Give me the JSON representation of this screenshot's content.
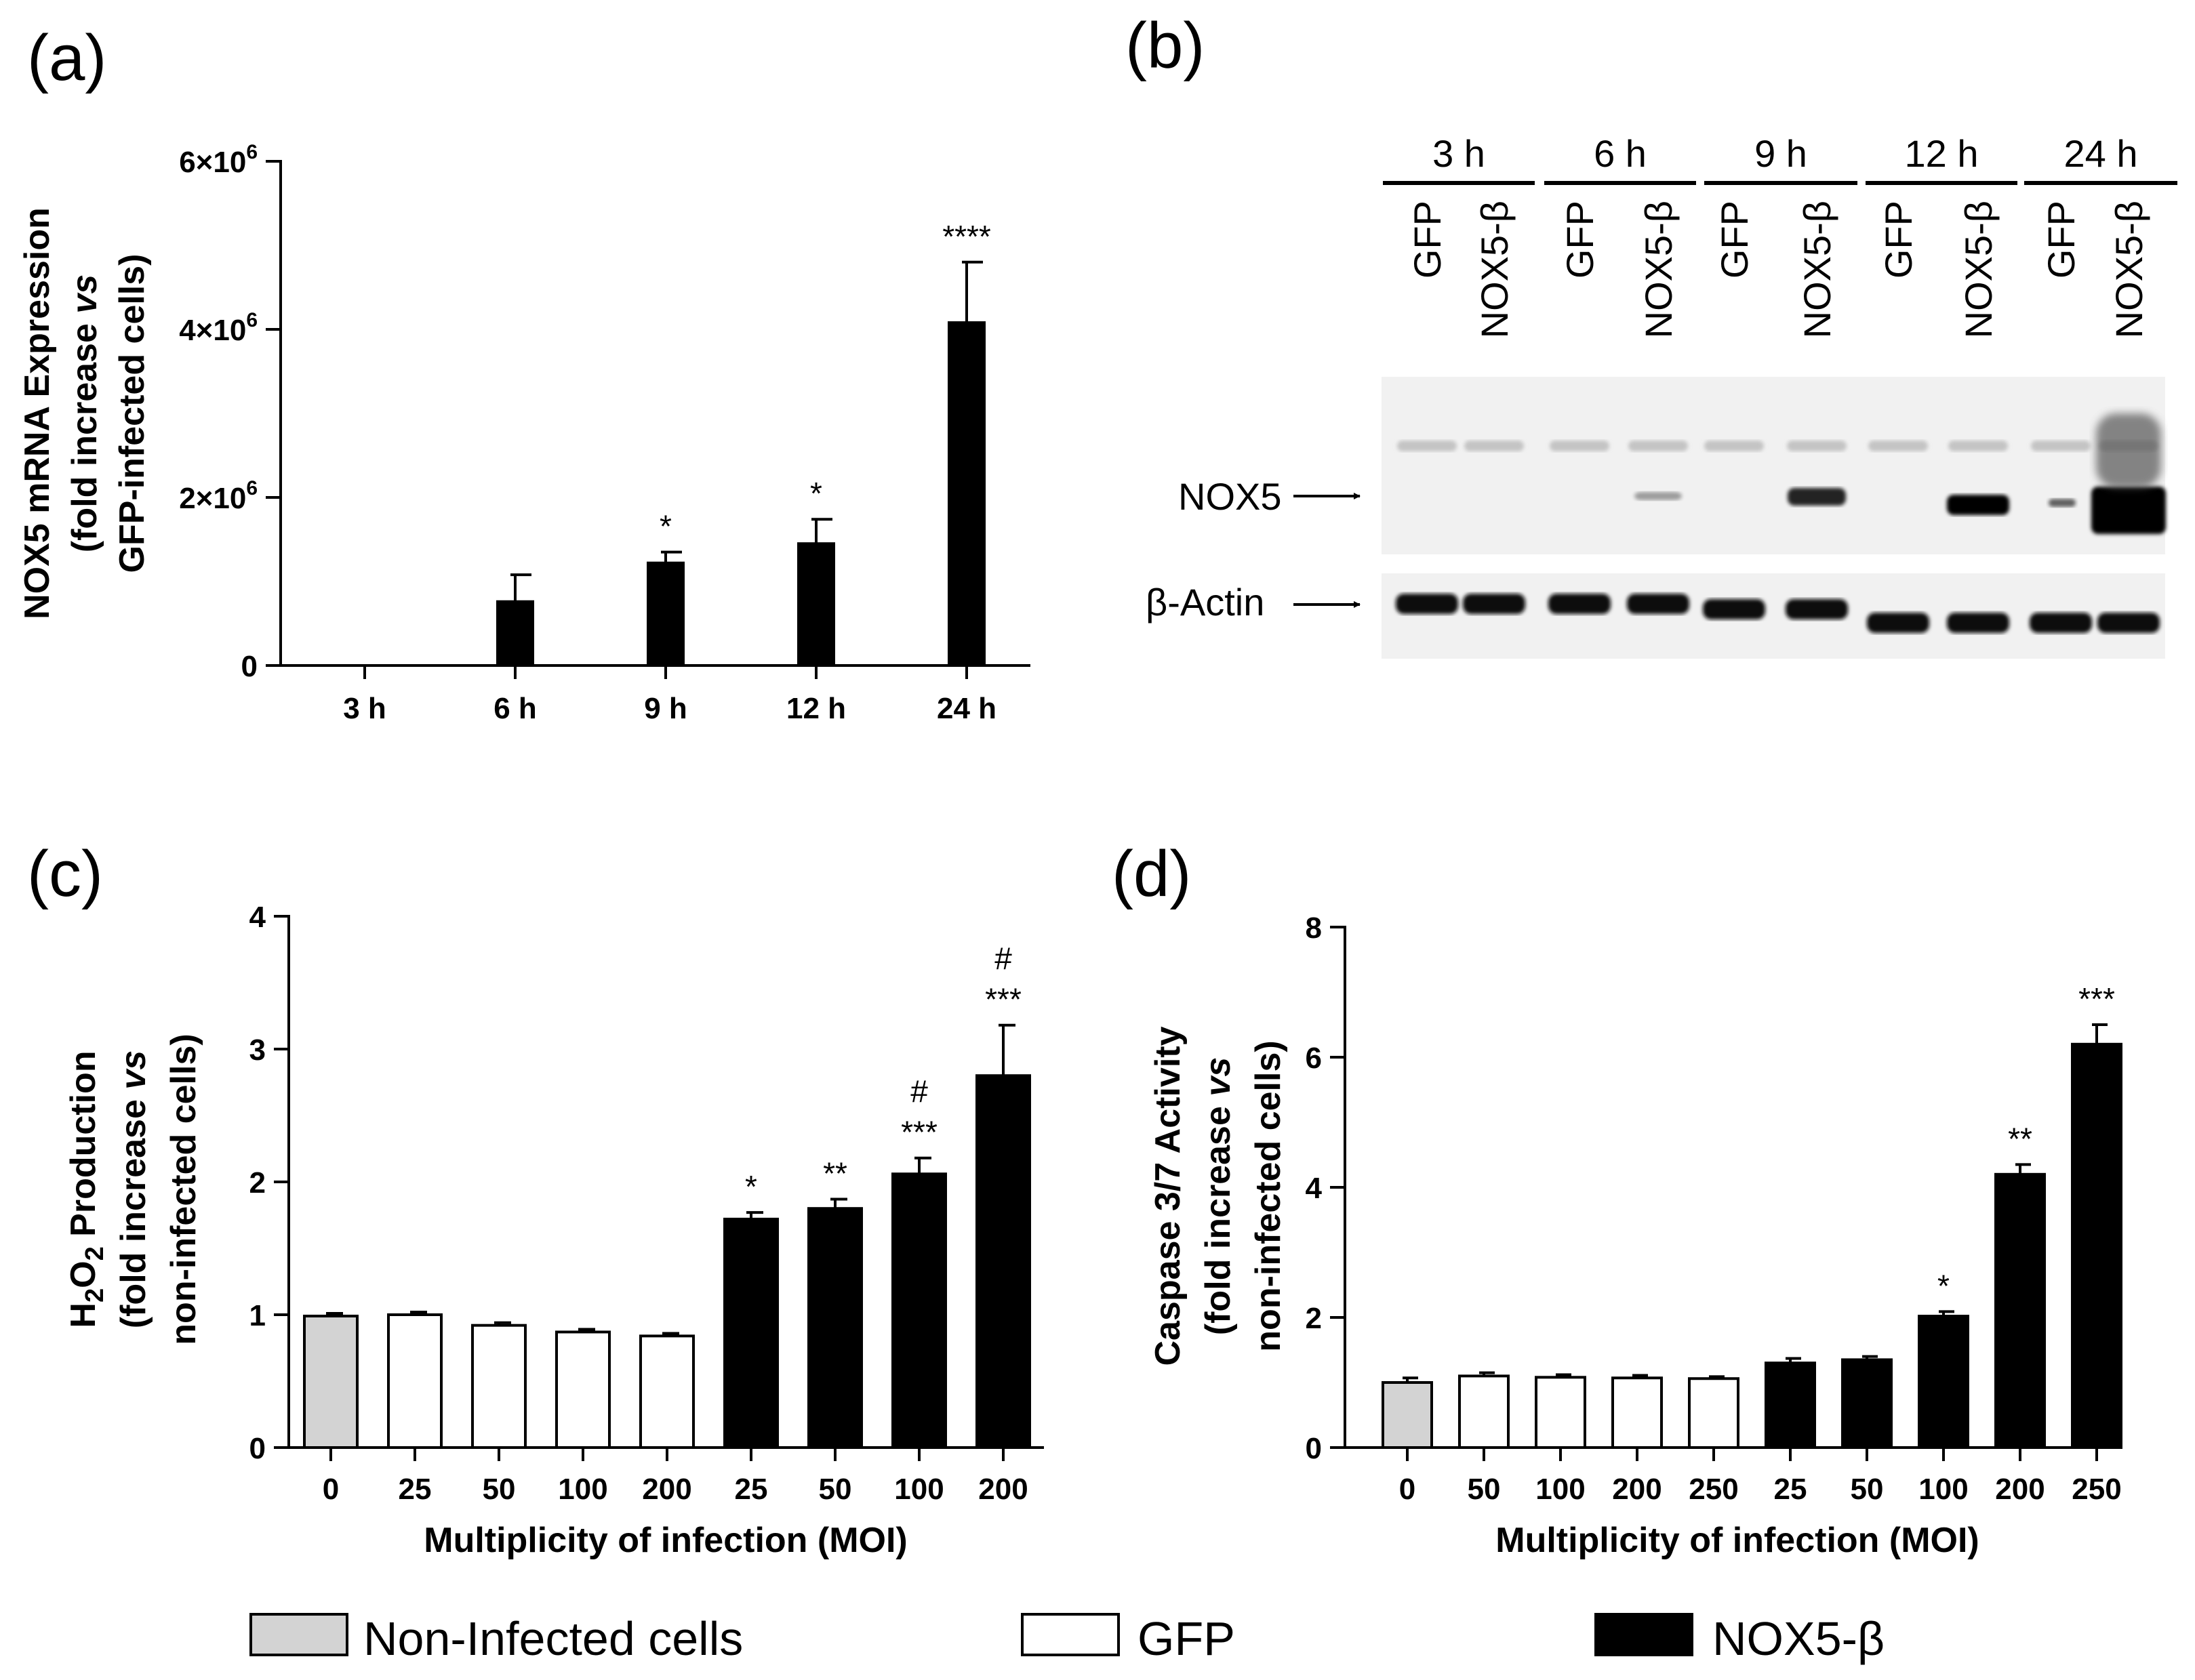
{
  "panels": {
    "a": {
      "label": "(a)",
      "chart_data": {
        "type": "bar",
        "ylabel_lines": [
          "NOX5 mRNA Expression",
          "(fold increase vs",
          "GFP-infected cells)"
        ],
        "ylabel_italic_word": "vs",
        "categories": [
          "3 h",
          "6 h",
          "9 h",
          "12 h",
          "24 h"
        ],
        "values": [
          0,
          760000,
          1220000,
          1450000,
          4080000
        ],
        "errors": [
          0,
          320000,
          130000,
          290000,
          720000
        ],
        "significance": [
          "",
          "",
          "*",
          "*",
          "****"
        ],
        "yticks": [
          0,
          2000000,
          4000000,
          6000000
        ],
        "ytick_labels": [
          {
            "mant": "0",
            "exp": ""
          },
          {
            "mant": "2×10",
            "exp": "6"
          },
          {
            "mant": "4×10",
            "exp": "6"
          },
          {
            "mant": "6×10",
            "exp": "6"
          }
        ],
        "ylim": [
          0,
          6000000
        ],
        "bar_color": "#000000"
      }
    },
    "b": {
      "label": "(b)",
      "time_groups": [
        "3 h",
        "6 h",
        "9 h",
        "12 h",
        "24 h"
      ],
      "lane_labels": [
        "GFP",
        "NOX5-β",
        "GFP",
        "NOX5-β",
        "GFP",
        "NOX5-β",
        "GFP",
        "NOX5-β",
        "GFP",
        "NOX5-β"
      ],
      "rows": {
        "nox5": "NOX5",
        "actin": "β-Actin"
      }
    },
    "c": {
      "label": "(c)",
      "chart_data": {
        "type": "bar",
        "ylabel_lines": [
          "H2O2 Production",
          "(fold increase vs",
          "non-infected cells)"
        ],
        "ylabel_h2o2": {
          "h": "H",
          "two": "2",
          "o": "O",
          "rest": " Production"
        },
        "xlabel": "Multiplicity of infection (MOI)",
        "categories": [
          "0",
          "25",
          "50",
          "100",
          "200",
          "25",
          "50",
          "100",
          "200"
        ],
        "groups": [
          "noninf",
          "gfp",
          "gfp",
          "gfp",
          "gfp",
          "nox",
          "nox",
          "nox",
          "nox"
        ],
        "values": [
          0.99,
          1.0,
          0.92,
          0.87,
          0.84,
          1.72,
          1.8,
          2.06,
          2.8
        ],
        "errors": [
          0.02,
          0.02,
          0.02,
          0.02,
          0.02,
          0.05,
          0.07,
          0.12,
          0.38
        ],
        "significance": [
          "",
          "",
          "",
          "",
          "",
          "*",
          "**",
          "***",
          "***"
        ],
        "hash": [
          "",
          "",
          "",
          "",
          "",
          "",
          "",
          "#",
          "#"
        ],
        "yticks": [
          0,
          1,
          2,
          3,
          4
        ],
        "ylim": [
          0,
          4
        ]
      }
    },
    "d": {
      "label": "(d)",
      "chart_data": {
        "type": "bar",
        "ylabel_lines": [
          "Caspase 3/7 Activity",
          "(fold increase vs",
          "non-infected cells)"
        ],
        "xlabel": "Multiplicity of infection (MOI)",
        "categories": [
          "0",
          "50",
          "100",
          "200",
          "250",
          "25",
          "50",
          "100",
          "200",
          "250"
        ],
        "groups": [
          "noninf",
          "gfp",
          "gfp",
          "gfp",
          "gfp",
          "nox",
          "nox",
          "nox",
          "nox",
          "nox"
        ],
        "values": [
          1.0,
          1.1,
          1.08,
          1.07,
          1.06,
          1.3,
          1.35,
          2.02,
          4.2,
          6.2
        ],
        "errors": [
          0.07,
          0.05,
          0.04,
          0.04,
          0.03,
          0.07,
          0.05,
          0.07,
          0.15,
          0.3
        ],
        "significance": [
          "",
          "",
          "",
          "",
          "",
          "",
          "",
          "*",
          "**",
          "***"
        ],
        "yticks": [
          0,
          2,
          4,
          6,
          8
        ],
        "ylim": [
          0,
          8
        ]
      }
    }
  },
  "legend": [
    {
      "label": "Non-Infected cells",
      "color": "#d3d3d3"
    },
    {
      "label": "GFP",
      "color": "#ffffff"
    },
    {
      "label": "NOX5-β",
      "color": "#000000"
    }
  ],
  "colors": {
    "noninf": "#d3d3d3",
    "gfp": "#ffffff",
    "nox": "#000000"
  }
}
